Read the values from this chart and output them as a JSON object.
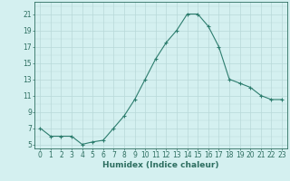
{
  "x": [
    0,
    1,
    2,
    3,
    4,
    5,
    6,
    7,
    8,
    9,
    10,
    11,
    12,
    13,
    14,
    15,
    16,
    17,
    18,
    19,
    20,
    21,
    22,
    23
  ],
  "y": [
    7,
    6.0,
    6.0,
    6.0,
    5.0,
    5.3,
    5.5,
    7.0,
    8.5,
    10.5,
    13.0,
    15.5,
    17.5,
    19.0,
    21.0,
    21.0,
    19.5,
    17.0,
    13.0,
    12.5,
    12.0,
    11.0,
    10.5,
    10.5
  ],
  "bg_color": "#d4f0f0",
  "line_color": "#2d7d6e",
  "marker_color": "#2d7d6e",
  "grid_color_major": "#b8d8d8",
  "xlabel": "Humidex (Indice chaleur)",
  "xlim": [
    -0.5,
    23.5
  ],
  "ylim": [
    4.5,
    22.5
  ],
  "yticks": [
    5,
    7,
    9,
    11,
    13,
    15,
    17,
    19,
    21
  ],
  "xtick_labels": [
    "0",
    "1",
    "2",
    "3",
    "4",
    "5",
    "6",
    "7",
    "8",
    "9",
    "10",
    "11",
    "12",
    "13",
    "14",
    "15",
    "16",
    "17",
    "18",
    "19",
    "20",
    "21",
    "22",
    "23"
  ],
  "tick_color": "#2d6e60",
  "axis_color": "#2d6e60",
  "label_fontsize": 6.5,
  "tick_fontsize": 5.5
}
